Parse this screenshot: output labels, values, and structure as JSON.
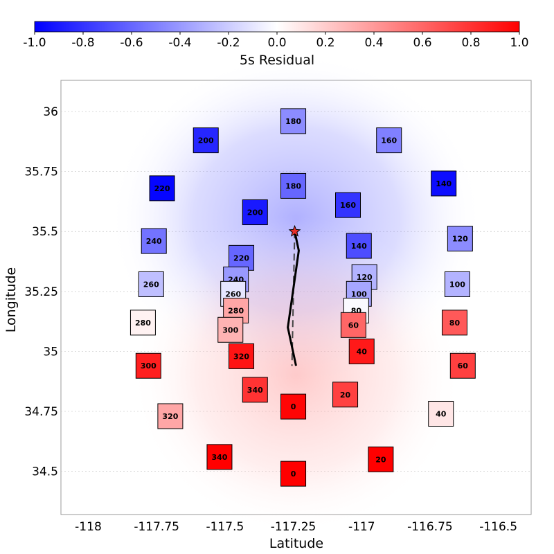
{
  "chart_data": {
    "type": "scatter",
    "xlabel": "Latitude",
    "ylabel": "Longitude",
    "xlim": [
      -118.1,
      -116.38
    ],
    "ylim": [
      34.32,
      36.13
    ],
    "x_ticks": [
      "-118",
      "-117.75",
      "-117.5",
      "-117.25",
      "-117",
      "-116.75",
      "-116.5"
    ],
    "x_tick_values": [
      -118,
      -117.75,
      -117.5,
      -117.25,
      -117,
      -116.75,
      -116.5
    ],
    "y_ticks": [
      "36",
      "35.75",
      "35.5",
      "35.25",
      "35",
      "34.75",
      "34.5"
    ],
    "y_tick_values": [
      36,
      35.75,
      35.5,
      35.25,
      35,
      34.75,
      34.5
    ],
    "grid": true,
    "colorbar": {
      "label": "5s Residual",
      "range": [
        -1.0,
        1.0
      ],
      "ticks": [
        "-1.0",
        "-0.8",
        "-0.6",
        "-0.4",
        "-0.2",
        "0.0",
        "0.2",
        "0.4",
        "0.6",
        "0.8",
        "1.0"
      ],
      "tick_values": [
        -1.0,
        -0.8,
        -0.6,
        -0.4,
        -0.2,
        0.0,
        0.2,
        0.4,
        0.6,
        0.8,
        1.0
      ],
      "cmap": "bwr",
      "placement": "top"
    },
    "background_field": {
      "center": [
        -117.24,
        35.1
      ],
      "north_value": -0.22,
      "south_value": 0.15
    },
    "stations": [
      {
        "label": "180",
        "x": -117.25,
        "y": 35.96,
        "value": -0.45
      },
      {
        "label": "200",
        "x": -117.57,
        "y": 35.88,
        "value": -0.85
      },
      {
        "label": "160",
        "x": -116.9,
        "y": 35.88,
        "value": -0.5
      },
      {
        "label": "220",
        "x": -117.73,
        "y": 35.68,
        "value": -0.98
      },
      {
        "label": "180",
        "x": -117.25,
        "y": 35.69,
        "value": -0.6
      },
      {
        "label": "140",
        "x": -116.7,
        "y": 35.7,
        "value": -0.95
      },
      {
        "label": "160",
        "x": -117.05,
        "y": 35.61,
        "value": -0.8
      },
      {
        "label": "200",
        "x": -117.39,
        "y": 35.58,
        "value": -0.9
      },
      {
        "label": "240",
        "x": -117.76,
        "y": 35.46,
        "value": -0.55
      },
      {
        "label": "120",
        "x": -116.64,
        "y": 35.47,
        "value": -0.45
      },
      {
        "label": "140",
        "x": -117.01,
        "y": 35.44,
        "value": -0.7
      },
      {
        "label": "220",
        "x": -117.44,
        "y": 35.39,
        "value": -0.6
      },
      {
        "label": "240",
        "x": -117.46,
        "y": 35.3,
        "value": -0.4
      },
      {
        "label": "120",
        "x": -116.99,
        "y": 35.31,
        "value": -0.3
      },
      {
        "label": "260",
        "x": -117.77,
        "y": 35.28,
        "value": -0.25
      },
      {
        "label": "100",
        "x": -116.65,
        "y": 35.28,
        "value": -0.3
      },
      {
        "label": "260",
        "x": -117.47,
        "y": 35.24,
        "value": -0.1
      },
      {
        "label": "100",
        "x": -117.01,
        "y": 35.24,
        "value": -0.35
      },
      {
        "label": "280",
        "x": -117.46,
        "y": 35.17,
        "value": 0.35
      },
      {
        "label": "80",
        "x": -117.02,
        "y": 35.17,
        "value": -0.02
      },
      {
        "label": "280",
        "x": -117.8,
        "y": 35.12,
        "value": 0.05
      },
      {
        "label": "80",
        "x": -116.66,
        "y": 35.12,
        "value": 0.65
      },
      {
        "label": "60",
        "x": -117.03,
        "y": 35.11,
        "value": 0.6
      },
      {
        "label": "300",
        "x": -117.48,
        "y": 35.09,
        "value": 0.3
      },
      {
        "label": "40",
        "x": -117.0,
        "y": 35.0,
        "value": 0.9
      },
      {
        "label": "320",
        "x": -117.44,
        "y": 34.98,
        "value": 0.92
      },
      {
        "label": "300",
        "x": -117.78,
        "y": 34.94,
        "value": 0.88
      },
      {
        "label": "60",
        "x": -116.63,
        "y": 34.94,
        "value": 0.75
      },
      {
        "label": "340",
        "x": -117.39,
        "y": 34.84,
        "value": 0.8
      },
      {
        "label": "20",
        "x": -117.06,
        "y": 34.82,
        "value": 0.75
      },
      {
        "label": "0",
        "x": -117.25,
        "y": 34.77,
        "value": 0.98
      },
      {
        "label": "40",
        "x": -116.71,
        "y": 34.74,
        "value": 0.1
      },
      {
        "label": "320",
        "x": -117.7,
        "y": 34.73,
        "value": 0.35
      },
      {
        "label": "340",
        "x": -117.52,
        "y": 34.56,
        "value": 1.0
      },
      {
        "label": "20",
        "x": -116.93,
        "y": 34.55,
        "value": 1.0
      },
      {
        "label": "0",
        "x": -117.25,
        "y": 34.49,
        "value": 1.0
      }
    ],
    "epicenter": {
      "x": -117.245,
      "y": 35.5
    },
    "rupture_trace": [
      [
        -117.245,
        35.5
      ],
      [
        -117.23,
        35.42
      ],
      [
        -117.245,
        35.3
      ],
      [
        -117.27,
        35.1
      ],
      [
        -117.255,
        35.02
      ],
      [
        -117.24,
        34.94
      ]
    ],
    "dashed_line": [
      [
        -117.245,
        35.5
      ],
      [
        -117.255,
        34.94
      ]
    ]
  }
}
